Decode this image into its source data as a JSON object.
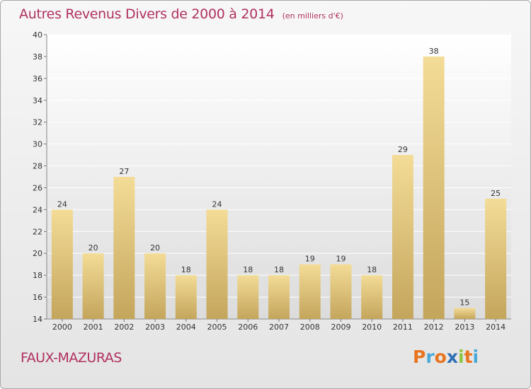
{
  "chart_data": {
    "type": "bar",
    "title": "Autres Revenus Divers de 2000 à 2014",
    "subtitle": "(en milliers d'€)",
    "categories": [
      "2000",
      "2001",
      "2002",
      "2003",
      "2004",
      "2005",
      "2006",
      "2007",
      "2008",
      "2009",
      "2010",
      "2011",
      "2012",
      "2013",
      "2014"
    ],
    "values": [
      24,
      20,
      27,
      20,
      18,
      24,
      18,
      18,
      19,
      19,
      18,
      29,
      38,
      15,
      25
    ],
    "value_labels": [
      "24",
      "20",
      "27",
      "20",
      "18",
      "24",
      "18",
      "18",
      "19",
      "19",
      "18",
      "29",
      "38",
      "15",
      "25"
    ],
    "ylim": [
      14,
      40
    ],
    "yticks": [
      "14",
      "16",
      "18",
      "20",
      "22",
      "24",
      "26",
      "28",
      "30",
      "32",
      "34",
      "36",
      "38",
      "40"
    ],
    "grid": true,
    "legend": "none",
    "bar_color_top": "#f3dc97",
    "bar_color_bottom": "#c4a55c",
    "title_color": "#b03060"
  },
  "footer": {
    "commune": "FAUX-MAZURAS",
    "brand_letters": [
      "P",
      "r",
      "o",
      "x",
      "i",
      "t",
      "i"
    ],
    "brand_colors": [
      "#e8741e",
      "#4aa8d8",
      "#e8741e",
      "#2e6fb5",
      "#8cc63f",
      "#e8741e",
      "#4aa8d8"
    ]
  }
}
